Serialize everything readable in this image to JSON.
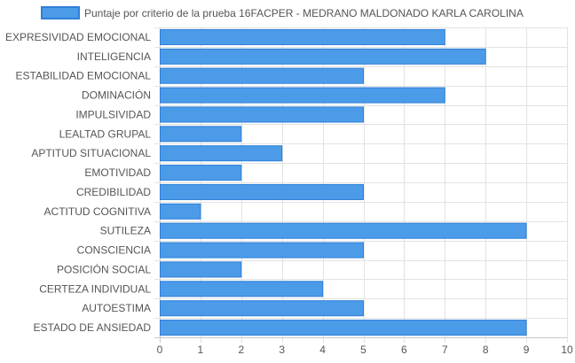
{
  "chart_data": {
    "type": "bar",
    "orientation": "horizontal",
    "categories": [
      "EXPRESIVIDAD EMOCIONAL",
      "INTELIGENCIA",
      "ESTABILIDAD EMOCIONAL",
      "DOMINACIÓN",
      "IMPULSIVIDAD",
      "LEALTAD GRUPAL",
      "APTITUD SITUACIONAL",
      "EMOTIVIDAD",
      "CREDIBILIDAD",
      "ACTITUD COGNITIVA",
      "SUTILEZA",
      "CONSCIENCIA",
      "POSICIÓN SOCIAL",
      "CERTEZA INDIVIDUAL",
      "AUTOESTIMA",
      "ESTADO DE ANSIEDAD"
    ],
    "series": [
      {
        "name": "Puntaje por criterio de la prueba 16FACPER - MEDRANO MALDONADO KARLA CAROLINA",
        "values": [
          7,
          8,
          5,
          7,
          5,
          2,
          3,
          2,
          5,
          1,
          9,
          5,
          2,
          4,
          5,
          9
        ],
        "color": "#4b9be9",
        "border_color": "#2f7fd6"
      }
    ],
    "xlim": [
      0,
      10
    ],
    "x_ticks": [
      0,
      1,
      2,
      3,
      4,
      5,
      6,
      7,
      8,
      9,
      10
    ],
    "grid": true,
    "legend": "top-center",
    "title": "",
    "xlabel": "",
    "ylabel": ""
  }
}
